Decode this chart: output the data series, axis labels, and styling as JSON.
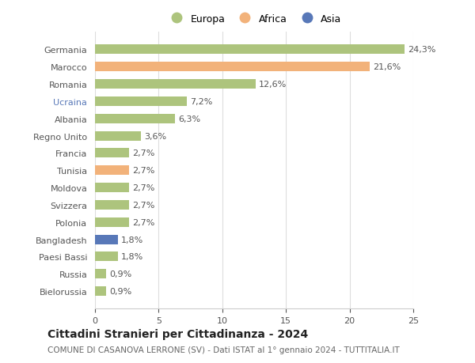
{
  "countries": [
    "Germania",
    "Marocco",
    "Romania",
    "Ucraina",
    "Albania",
    "Regno Unito",
    "Francia",
    "Tunisia",
    "Moldova",
    "Svizzera",
    "Polonia",
    "Bangladesh",
    "Paesi Bassi",
    "Russia",
    "Bielorussia"
  ],
  "values": [
    24.3,
    21.6,
    12.6,
    7.2,
    6.3,
    3.6,
    2.7,
    2.7,
    2.7,
    2.7,
    2.7,
    1.8,
    1.8,
    0.9,
    0.9
  ],
  "labels": [
    "24,3%",
    "21,6%",
    "12,6%",
    "7,2%",
    "6,3%",
    "3,6%",
    "2,7%",
    "2,7%",
    "2,7%",
    "2,7%",
    "2,7%",
    "1,8%",
    "1,8%",
    "0,9%",
    "0,9%"
  ],
  "continents": [
    "Europa",
    "Africa",
    "Europa",
    "Europa",
    "Europa",
    "Europa",
    "Europa",
    "Africa",
    "Europa",
    "Europa",
    "Europa",
    "Asia",
    "Europa",
    "Europa",
    "Europa"
  ],
  "colors": {
    "Europa": "#adc47d",
    "Africa": "#f2b27a",
    "Asia": "#5878b8"
  },
  "blue_label_country": "Bangladesh",
  "blue_label_color": "#5878b8",
  "title": "Cittadini Stranieri per Cittadinanza - 2024",
  "subtitle": "COMUNE DI CASANOVA LERRONE (SV) - Dati ISTAT al 1° gennaio 2024 - TUTTITALIA.IT",
  "xlim": [
    0,
    25
  ],
  "xticks": [
    0,
    5,
    10,
    15,
    20,
    25
  ],
  "background_color": "#ffffff",
  "grid_color": "#dddddd",
  "bar_height": 0.55,
  "title_fontsize": 10,
  "subtitle_fontsize": 7.5,
  "tick_fontsize": 8,
  "label_fontsize": 8,
  "legend_fontsize": 9
}
